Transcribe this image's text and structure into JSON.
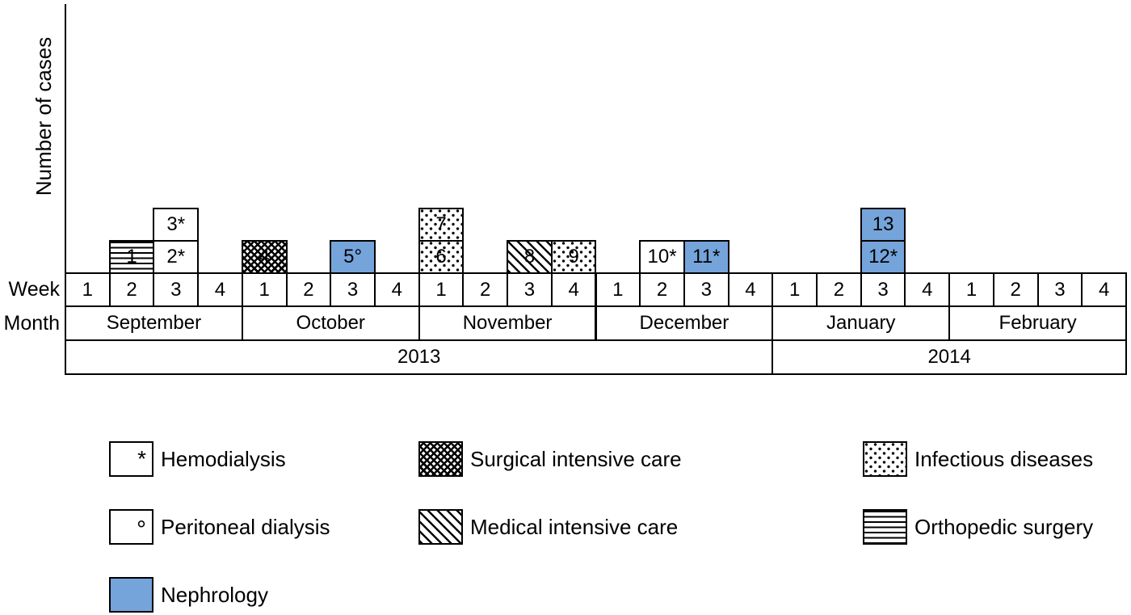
{
  "chart_data": {
    "type": "bar",
    "subtype": "epidemic_curve_stacked_weekly_cases",
    "title": "",
    "ylabel": "Number of cases",
    "row_labels": {
      "week": "Week",
      "month": "Month"
    },
    "week_numbers": [
      "1",
      "2",
      "3",
      "4"
    ],
    "months": [
      {
        "name": "September",
        "year": "2013"
      },
      {
        "name": "October",
        "year": "2013"
      },
      {
        "name": "November",
        "year": "2013"
      },
      {
        "name": "December",
        "year": "2013"
      },
      {
        "name": "January",
        "year": "2014"
      },
      {
        "name": "February",
        "year": "2014"
      }
    ],
    "years": [
      {
        "label": "2013",
        "week_span": 16
      },
      {
        "label": "2014",
        "week_span": 8
      }
    ],
    "cases": [
      {
        "label": "1",
        "month": "September",
        "week": 2,
        "stack_level": 1,
        "fill": "orthopedic_surgery",
        "marker": ""
      },
      {
        "label": "2*",
        "month": "September",
        "week": 3,
        "stack_level": 1,
        "fill": "plain_white",
        "marker": "*"
      },
      {
        "label": "3*",
        "month": "September",
        "week": 3,
        "stack_level": 2,
        "fill": "plain_white",
        "marker": "*"
      },
      {
        "label": "4",
        "month": "October",
        "week": 1,
        "stack_level": 1,
        "fill": "surgical_intensive_care",
        "marker": ""
      },
      {
        "label": "5°",
        "month": "October",
        "week": 3,
        "stack_level": 1,
        "fill": "nephrology",
        "marker": "°"
      },
      {
        "label": "6",
        "month": "November",
        "week": 1,
        "stack_level": 1,
        "fill": "infectious_diseases",
        "marker": ""
      },
      {
        "label": "7",
        "month": "November",
        "week": 1,
        "stack_level": 2,
        "fill": "infectious_diseases",
        "marker": ""
      },
      {
        "label": "8",
        "month": "November",
        "week": 3,
        "stack_level": 1,
        "fill": "medical_intensive_care",
        "marker": ""
      },
      {
        "label": "9",
        "month": "November",
        "week": 4,
        "stack_level": 1,
        "fill": "infectious_diseases",
        "marker": ""
      },
      {
        "label": "10*",
        "month": "December",
        "week": 2,
        "stack_level": 1,
        "fill": "plain_white",
        "marker": "*"
      },
      {
        "label": "11*",
        "month": "December",
        "week": 3,
        "stack_level": 1,
        "fill": "nephrology",
        "marker": "*"
      },
      {
        "label": "12*",
        "month": "January",
        "week": 3,
        "stack_level": 1,
        "fill": "nephrology",
        "marker": "*"
      },
      {
        "label": "13",
        "month": "January",
        "week": 3,
        "stack_level": 2,
        "fill": "nephrology",
        "marker": ""
      }
    ],
    "weekly_counts": {
      "September": [
        0,
        1,
        2,
        0
      ],
      "October": [
        1,
        0,
        1,
        0
      ],
      "November": [
        2,
        0,
        1,
        1
      ],
      "December": [
        0,
        1,
        1,
        0
      ],
      "January": [
        0,
        0,
        2,
        0
      ],
      "February": [
        0,
        0,
        0,
        0
      ]
    },
    "legend": [
      {
        "label": "Hemodialysis",
        "swatch": "plain_white",
        "symbol": "*",
        "column": 1,
        "row": 1
      },
      {
        "label": "Peritoneal dialysis",
        "swatch": "plain_white",
        "symbol": "°",
        "column": 1,
        "row": 2
      },
      {
        "label": "Nephrology",
        "swatch": "nephrology",
        "symbol": "",
        "column": 1,
        "row": 3
      },
      {
        "label": "Surgical intensive care",
        "swatch": "surgical_intensive_care",
        "symbol": "",
        "column": 2,
        "row": 1
      },
      {
        "label": "Medical intensive care",
        "swatch": "medical_intensive_care",
        "symbol": "",
        "column": 2,
        "row": 2
      },
      {
        "label": "Infectious diseases",
        "swatch": "infectious_diseases",
        "symbol": "",
        "column": 3,
        "row": 1
      },
      {
        "label": "Orthopedic surgery",
        "swatch": "orthopedic_surgery",
        "symbol": "",
        "column": 3,
        "row": 2
      }
    ],
    "colors": {
      "nephrology_blue": "#75a4db",
      "line": "#000000",
      "background": "#ffffff"
    },
    "layout": {
      "legend_position": "bottom",
      "grid": false
    }
  }
}
